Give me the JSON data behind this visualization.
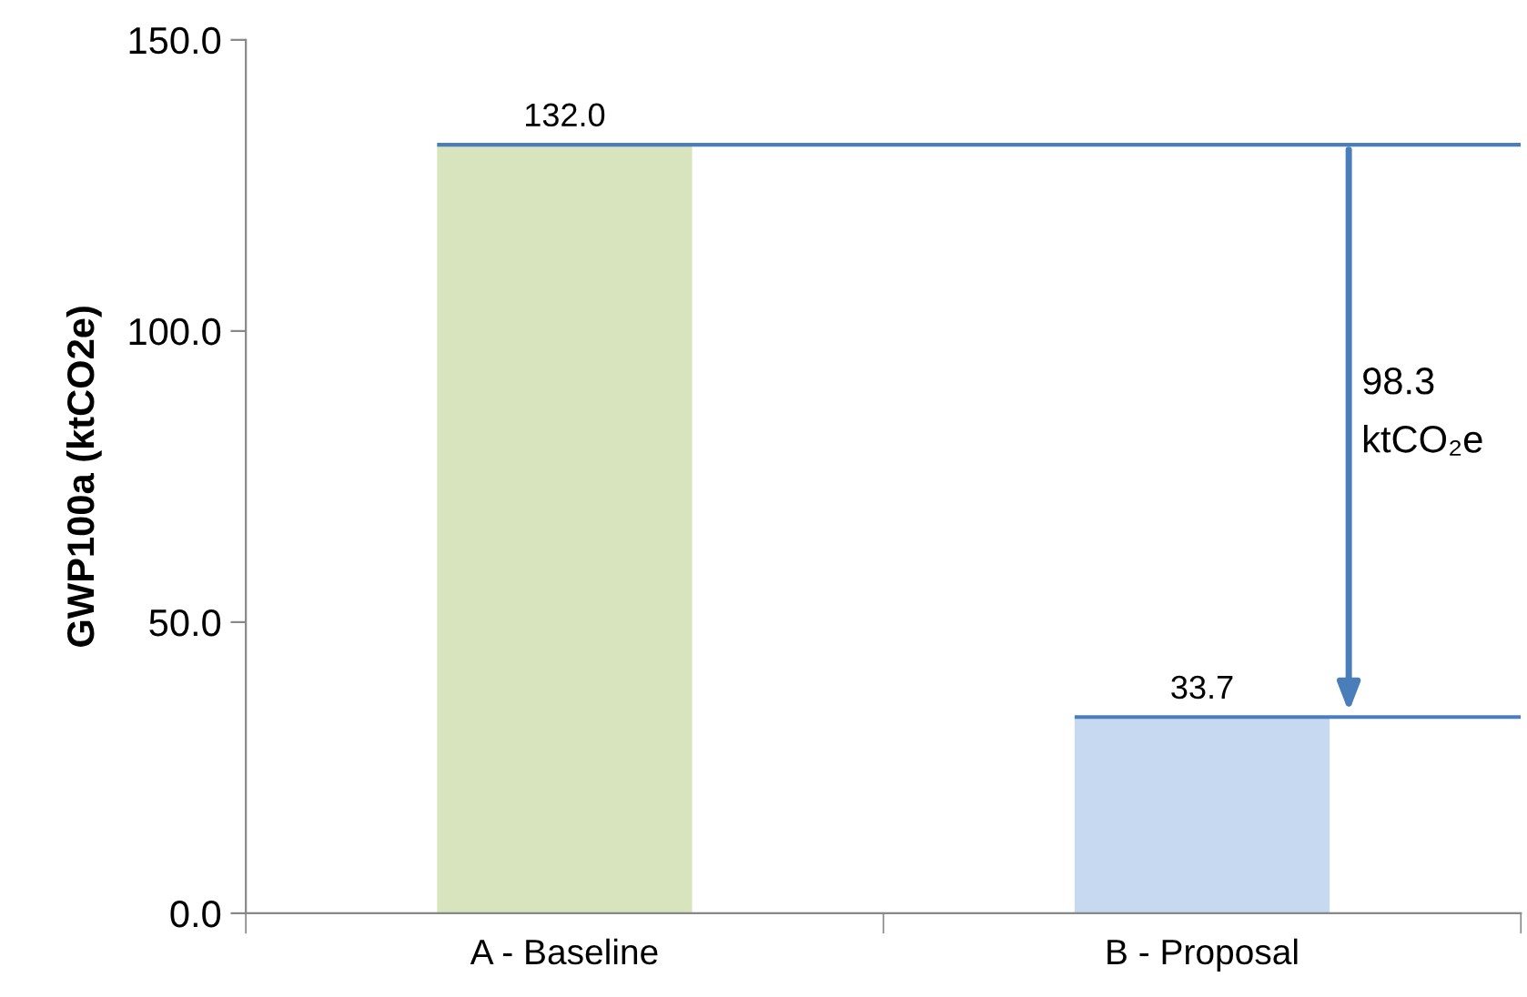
{
  "chart_data": {
    "type": "bar",
    "ylabel": "GWP100a (ktCO2e)",
    "categories": [
      "A - Baseline",
      "B - Proposal"
    ],
    "values": [
      132.0,
      33.7
    ],
    "colors": [
      "#d7e4bd",
      "#c6d9f1"
    ],
    "value_labels": [
      "132.0",
      "33.7"
    ],
    "ylim": [
      0,
      150
    ],
    "yticks": [
      {
        "value": 0,
        "label": "0.0"
      },
      {
        "value": 50,
        "label": "50.0"
      },
      {
        "value": 100,
        "label": "100.0"
      },
      {
        "value": 150,
        "label": "150.0"
      }
    ],
    "ref_lines": [
      {
        "axis": "y",
        "value": 132.0,
        "color": "#4a7ebb"
      },
      {
        "axis": "y",
        "value": 33.7,
        "color": "#4a7ebb"
      }
    ],
    "annotations": [
      "98.3\nktCO₂e"
    ],
    "grid": false,
    "legend": false
  }
}
